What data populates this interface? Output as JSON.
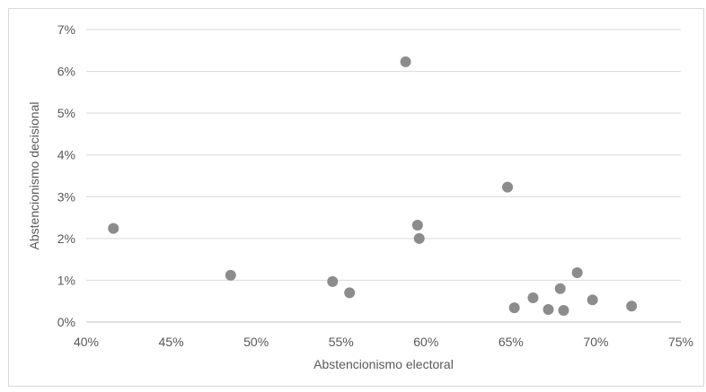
{
  "chart_data": {
    "type": "scatter",
    "title": "",
    "xlabel": "Abstencionismo electoral",
    "ylabel": "Abstencionismo decisional",
    "xlim": [
      0.4,
      0.75
    ],
    "ylim": [
      0.0,
      0.07
    ],
    "x_ticks": [
      "40%",
      "45%",
      "50%",
      "55%",
      "60%",
      "65%",
      "70%",
      "75%"
    ],
    "y_ticks": [
      "0%",
      "1%",
      "2%",
      "3%",
      "4%",
      "5%",
      "6%",
      "7%"
    ],
    "grid": "horizontal",
    "legend": "none",
    "marker_color": "#8c8c8c",
    "points": [
      {
        "x": 0.416,
        "y": 0.0224
      },
      {
        "x": 0.485,
        "y": 0.0112
      },
      {
        "x": 0.545,
        "y": 0.0097
      },
      {
        "x": 0.555,
        "y": 0.007
      },
      {
        "x": 0.588,
        "y": 0.0623
      },
      {
        "x": 0.595,
        "y": 0.0232
      },
      {
        "x": 0.596,
        "y": 0.02
      },
      {
        "x": 0.648,
        "y": 0.0323
      },
      {
        "x": 0.652,
        "y": 0.0034
      },
      {
        "x": 0.663,
        "y": 0.0058
      },
      {
        "x": 0.672,
        "y": 0.003
      },
      {
        "x": 0.679,
        "y": 0.008
      },
      {
        "x": 0.681,
        "y": 0.0028
      },
      {
        "x": 0.689,
        "y": 0.0118
      },
      {
        "x": 0.698,
        "y": 0.0053
      },
      {
        "x": 0.721,
        "y": 0.0038
      }
    ]
  }
}
